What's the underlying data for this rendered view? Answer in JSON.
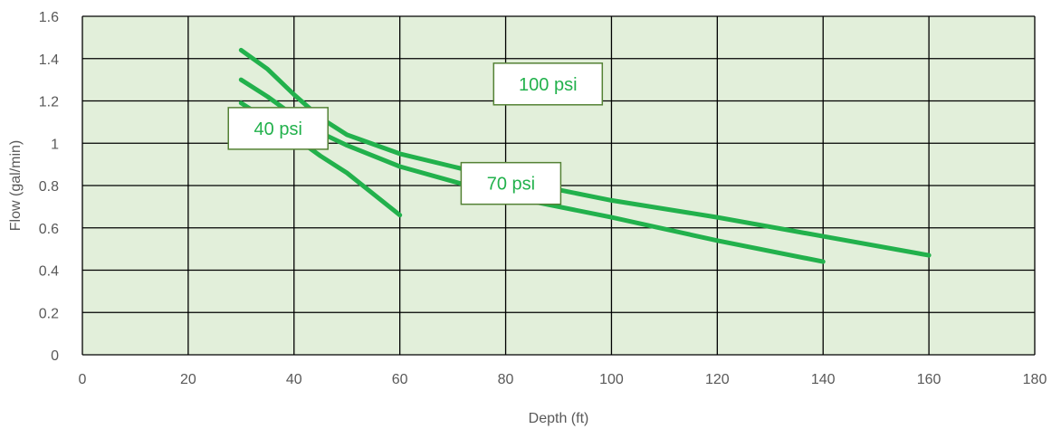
{
  "chart_data": {
    "type": "line",
    "xlabel": "Depth (ft)",
    "ylabel": "Flow (gal/min)",
    "xlim": [
      0,
      180
    ],
    "ylim": [
      0,
      1.6
    ],
    "x_ticks": [
      0,
      20,
      40,
      60,
      80,
      100,
      120,
      140,
      160,
      180
    ],
    "y_ticks": [
      0,
      0.2,
      0.4,
      0.6,
      0.8,
      1,
      1.2,
      1.4,
      1.6
    ],
    "grid": true,
    "plot_background": "#e2efda",
    "grid_color": "#000000",
    "line_color": "#22b14c",
    "label_border_color": "#548235",
    "series": [
      {
        "name": "40 psi",
        "label": "40 psi",
        "points": [
          [
            30,
            1.19
          ],
          [
            35,
            1.11
          ],
          [
            40,
            1.03
          ],
          [
            45,
            0.94
          ],
          [
            50,
            0.86
          ],
          [
            55,
            0.76
          ],
          [
            60,
            0.66
          ]
        ],
        "label_pos": {
          "x": 37,
          "y": 1.07
        }
      },
      {
        "name": "70 psi",
        "label": "70 psi",
        "points": [
          [
            30,
            1.3
          ],
          [
            35,
            1.22
          ],
          [
            40,
            1.13
          ],
          [
            45,
            1.05
          ],
          [
            50,
            0.99
          ],
          [
            60,
            0.89
          ],
          [
            70,
            0.82
          ],
          [
            80,
            0.75
          ],
          [
            100,
            0.65
          ],
          [
            120,
            0.54
          ],
          [
            140,
            0.44
          ]
        ],
        "label_pos": {
          "x": 81,
          "y": 0.81
        }
      },
      {
        "name": "100 psi",
        "label": "100 psi",
        "points": [
          [
            30,
            1.44
          ],
          [
            35,
            1.35
          ],
          [
            40,
            1.23
          ],
          [
            45,
            1.12
          ],
          [
            50,
            1.04
          ],
          [
            60,
            0.95
          ],
          [
            70,
            0.89
          ],
          [
            80,
            0.83
          ],
          [
            100,
            0.73
          ],
          [
            120,
            0.65
          ],
          [
            140,
            0.56
          ],
          [
            160,
            0.47
          ]
        ],
        "label_pos": {
          "x": 88,
          "y": 1.28
        }
      }
    ]
  }
}
